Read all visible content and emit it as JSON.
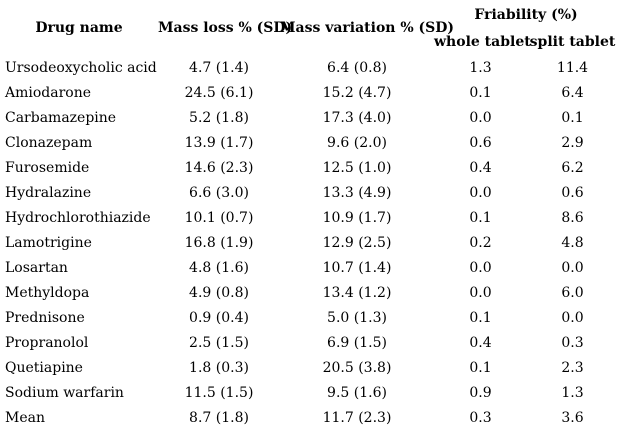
{
  "table": {
    "headers": {
      "drug_name": "Drug name",
      "mass_loss": "Mass loss % (SD)",
      "mass_variation": "Mass variation % (SD)",
      "friability_group": "Friability (%)",
      "friability_whole": "whole tablet",
      "friability_split": "split tablet"
    },
    "rows": [
      {
        "drug": "Ursodeoxycholic acid",
        "mass_loss": "4.7 (1.4)",
        "mass_variation": "6.4 (0.8)",
        "friability_whole": "1.3",
        "friability_split": "11.4"
      },
      {
        "drug": "Amiodarone",
        "mass_loss": "24.5 (6.1)",
        "mass_variation": "15.2 (4.7)",
        "friability_whole": "0.1",
        "friability_split": "6.4"
      },
      {
        "drug": "Carbamazepine",
        "mass_loss": "5.2 (1.8)",
        "mass_variation": "17.3 (4.0)",
        "friability_whole": "0.0",
        "friability_split": "0.1"
      },
      {
        "drug": "Clonazepam",
        "mass_loss": "13.9 (1.7)",
        "mass_variation": "9.6 (2.0)",
        "friability_whole": "0.6",
        "friability_split": "2.9"
      },
      {
        "drug": "Furosemide",
        "mass_loss": "14.6 (2.3)",
        "mass_variation": "12.5 (1.0)",
        "friability_whole": "0.4",
        "friability_split": "6.2"
      },
      {
        "drug": "Hydralazine",
        "mass_loss": "6.6 (3.0)",
        "mass_variation": "13.3 (4.9)",
        "friability_whole": "0.0",
        "friability_split": "0.6"
      },
      {
        "drug": "Hydrochlorothiazide",
        "mass_loss": "10.1 (0.7)",
        "mass_variation": "10.9 (1.7)",
        "friability_whole": "0.1",
        "friability_split": "8.6"
      },
      {
        "drug": "Lamotrigine",
        "mass_loss": "16.8 (1.9)",
        "mass_variation": "12.9 (2.5)",
        "friability_whole": "0.2",
        "friability_split": "4.8"
      },
      {
        "drug": "Losartan",
        "mass_loss": "4.8 (1.6)",
        "mass_variation": "10.7 (1.4)",
        "friability_whole": "0.0",
        "friability_split": "0.0"
      },
      {
        "drug": "Methyldopa",
        "mass_loss": "4.9 (0.8)",
        "mass_variation": "13.4 (1.2)",
        "friability_whole": "0.0",
        "friability_split": "6.0"
      },
      {
        "drug": "Prednisone",
        "mass_loss": "0.9 (0.4)",
        "mass_variation": "5.0 (1.3)",
        "friability_whole": "0.1",
        "friability_split": "0.0"
      },
      {
        "drug": "Propranolol",
        "mass_loss": "2.5 (1.5)",
        "mass_variation": "6.9 (1.5)",
        "friability_whole": "0.4",
        "friability_split": "0.3"
      },
      {
        "drug": "Quetiapine",
        "mass_loss": "1.8 (0.3)",
        "mass_variation": "20.5 (3.8)",
        "friability_whole": "0.1",
        "friability_split": "2.3"
      },
      {
        "drug": "Sodium warfarin",
        "mass_loss": "11.5 (1.5)",
        "mass_variation": "9.5 (1.6)",
        "friability_whole": "0.9",
        "friability_split": "1.3"
      },
      {
        "drug": "Mean",
        "mass_loss": "8.7 (1.8)",
        "mass_variation": "11.7 (2.3)",
        "friability_whole": "0.3",
        "friability_split": "3.6"
      }
    ]
  },
  "colors": {
    "background": "#ffffff",
    "text": "#000000"
  }
}
